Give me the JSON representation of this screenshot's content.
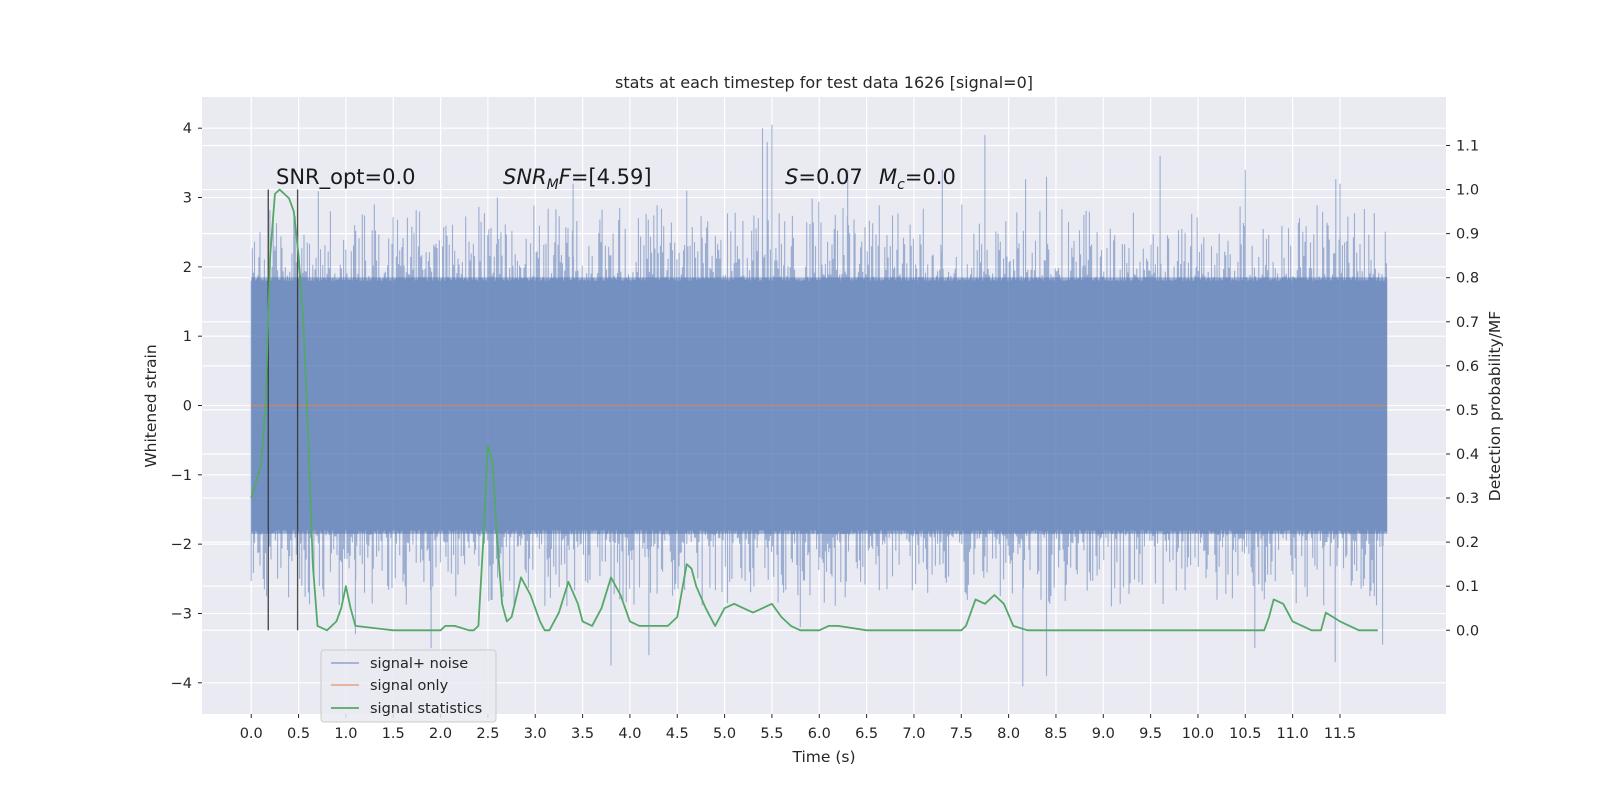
{
  "chart_data": {
    "type": "line",
    "title": "stats at each timestep for test data 1626 [signal=0]",
    "xlabel": "Time (s)",
    "ylabel": "Whitened strain",
    "y2label": "Detection probability/MF",
    "xlim": [
      -0.52,
      12.62
    ],
    "ylim": [
      -4.45,
      4.45
    ],
    "y2lim": [
      -0.19,
      1.21
    ],
    "x_ticks": [
      0.0,
      0.5,
      1.0,
      1.5,
      2.0,
      2.5,
      3.0,
      3.5,
      4.0,
      4.5,
      5.0,
      5.5,
      6.0,
      6.5,
      7.0,
      7.5,
      8.0,
      8.5,
      9.0,
      9.5,
      10.0,
      10.5,
      11.0,
      11.5
    ],
    "x_tick_labels": [
      "0.0",
      "0.5",
      "1.0",
      "1.5",
      "2.0",
      "2.5",
      "3.0",
      "3.5",
      "4.0",
      "4.5",
      "5.0",
      "5.5",
      "6.0",
      "6.5",
      "7.0",
      "7.5",
      "8.0",
      "8.5",
      "9.0",
      "9.5",
      "10.0",
      "10.5",
      "11.0",
      "11.5"
    ],
    "y_ticks": [
      -4,
      -3,
      -2,
      -1,
      0,
      1,
      2,
      3,
      4
    ],
    "y_tick_labels": [
      "−4",
      "−3",
      "−2",
      "−1",
      "0",
      "1",
      "2",
      "3",
      "4"
    ],
    "y2_ticks": [
      0.0,
      0.1,
      0.2,
      0.3,
      0.4,
      0.5,
      0.6,
      0.7,
      0.8,
      0.9,
      1.0,
      1.1
    ],
    "y2_tick_labels": [
      "0.0",
      "0.1",
      "0.2",
      "0.3",
      "0.4",
      "0.5",
      "0.6",
      "0.7",
      "0.8",
      "0.9",
      "1.0",
      "1.1"
    ],
    "grid": true,
    "legend_position": "lower-left",
    "annotations": {
      "snr_opt": "SNR_opt=0.0",
      "snr_mf_sym": "SNR",
      "snr_mf_sub": "M",
      "snr_mf_mid": "F",
      "snr_mf_val": "=[4.59]",
      "s_sym": "S",
      "s_val": "=0.07",
      "mc_sym": "M",
      "mc_sub": "c",
      "mc_val": "=0.0"
    },
    "vertical_markers": [
      0.18,
      0.49
    ],
    "series": [
      {
        "name": "signal+ noise",
        "color": "#4c72b0",
        "axis": "left",
        "x_range": [
          0.0,
          12.0
        ],
        "core_range": [
          -1.85,
          1.85
        ],
        "peaks_positive": [
          [
            0.25,
            2.3
          ],
          [
            0.45,
            2.7
          ],
          [
            1.3,
            2.9
          ],
          [
            2.6,
            3.0
          ],
          [
            3.4,
            3.2
          ],
          [
            4.6,
            3.1
          ],
          [
            5.4,
            4.0
          ],
          [
            5.45,
            3.8
          ],
          [
            5.5,
            4.05
          ],
          [
            6.3,
            3.4
          ],
          [
            7.3,
            3.4
          ],
          [
            7.75,
            3.9
          ],
          [
            8.4,
            3.3
          ],
          [
            9.6,
            3.6
          ],
          [
            10.5,
            3.4
          ],
          [
            11.5,
            3.2
          ]
        ],
        "peaks_negative": [
          [
            0.0,
            -2.3
          ],
          [
            1.1,
            -3.3
          ],
          [
            1.9,
            -3.5
          ],
          [
            3.8,
            -3.75
          ],
          [
            4.2,
            -3.6
          ],
          [
            5.8,
            -3.2
          ],
          [
            8.15,
            -4.05
          ],
          [
            8.4,
            -3.9
          ],
          [
            10.6,
            -3.5
          ],
          [
            11.45,
            -3.7
          ],
          [
            11.95,
            -3.45
          ]
        ]
      },
      {
        "name": "signal only",
        "color": "#dd8452",
        "axis": "left",
        "x": [
          0.0,
          12.0
        ],
        "y": [
          0.0,
          0.0
        ]
      },
      {
        "name": "signal statistics",
        "color": "#55a868",
        "axis": "right",
        "x": [
          0.0,
          0.1,
          0.15,
          0.2,
          0.25,
          0.3,
          0.35,
          0.4,
          0.45,
          0.5,
          0.55,
          0.6,
          0.65,
          0.7,
          0.8,
          0.9,
          0.95,
          1.0,
          1.05,
          1.1,
          1.5,
          1.75,
          2.0,
          2.05,
          2.15,
          2.3,
          2.35,
          2.4,
          2.45,
          2.5,
          2.55,
          2.6,
          2.65,
          2.7,
          2.75,
          2.85,
          2.95,
          3.05,
          3.1,
          3.15,
          3.25,
          3.35,
          3.45,
          3.5,
          3.6,
          3.7,
          3.8,
          3.9,
          4.0,
          4.1,
          4.2,
          4.3,
          4.4,
          4.5,
          4.6,
          4.65,
          4.7,
          4.8,
          4.9,
          5.0,
          5.1,
          5.2,
          5.3,
          5.4,
          5.5,
          5.6,
          5.7,
          5.8,
          6.0,
          6.1,
          6.2,
          6.5,
          7.0,
          7.5,
          7.55,
          7.65,
          7.75,
          7.85,
          7.95,
          8.05,
          8.2,
          8.5,
          9.0,
          9.5,
          10.0,
          10.5,
          10.7,
          10.75,
          10.8,
          10.9,
          11.0,
          11.2,
          11.3,
          11.35,
          11.5,
          11.7,
          11.9
        ],
        "y": [
          0.3,
          0.37,
          0.5,
          0.85,
          0.99,
          1.0,
          0.99,
          0.98,
          0.95,
          0.85,
          0.7,
          0.45,
          0.15,
          0.01,
          0.0,
          0.02,
          0.05,
          0.1,
          0.05,
          0.01,
          0.0,
          0.0,
          0.0,
          0.01,
          0.01,
          0.0,
          0.0,
          0.01,
          0.2,
          0.42,
          0.38,
          0.2,
          0.06,
          0.02,
          0.03,
          0.12,
          0.08,
          0.02,
          0.0,
          0.0,
          0.04,
          0.11,
          0.06,
          0.02,
          0.01,
          0.05,
          0.12,
          0.08,
          0.02,
          0.01,
          0.01,
          0.01,
          0.01,
          0.03,
          0.15,
          0.14,
          0.1,
          0.05,
          0.01,
          0.05,
          0.06,
          0.05,
          0.04,
          0.05,
          0.06,
          0.03,
          0.01,
          0.0,
          0.0,
          0.01,
          0.01,
          0.0,
          0.0,
          0.0,
          0.01,
          0.07,
          0.06,
          0.08,
          0.06,
          0.01,
          0.0,
          0.0,
          0.0,
          0.0,
          0.0,
          0.0,
          0.0,
          0.03,
          0.07,
          0.06,
          0.02,
          0.0,
          0.0,
          0.04,
          0.02,
          0.0,
          0.0
        ]
      }
    ]
  }
}
